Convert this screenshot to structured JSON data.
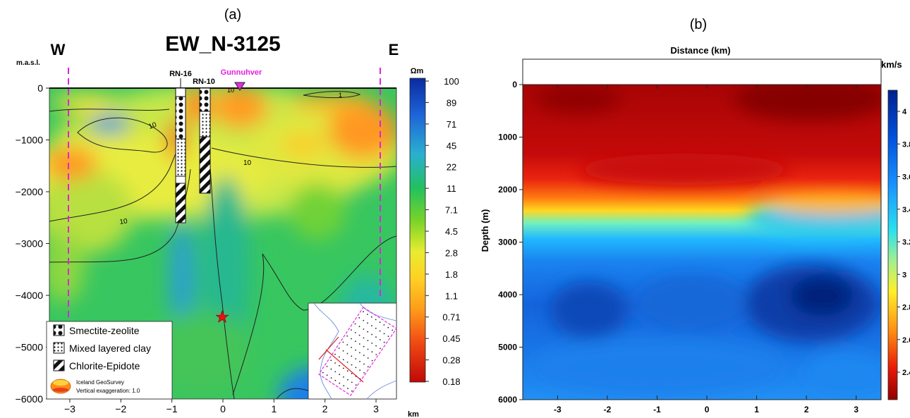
{
  "panel_a": {
    "label": "(a)",
    "title": "EW_N-3125",
    "west_label": "W",
    "east_label": "E",
    "y_unit": "m.a.s.l.",
    "x_unit": "km",
    "colorbar_unit": "Ωm",
    "well_labels": [
      "RN-16",
      "RN-10"
    ],
    "site_label": "Gunnuhver",
    "contour_labels": [
      "10",
      "10",
      "10",
      "10",
      "1"
    ],
    "legend": [
      {
        "name": "smectite",
        "label": "Smectite-zeolite"
      },
      {
        "name": "mixed",
        "label": "Mixed layered clay"
      },
      {
        "name": "chlorite",
        "label": "Chlorite-Epidote"
      }
    ],
    "logo_line1": "Iceland GeoSurvey",
    "logo_line2": "Vertical exaggeration: 1.0",
    "colors": {
      "orange": "#ff8c1a",
      "red": "#d81010",
      "magenta": "#e020e0"
    }
  },
  "panel_b": {
    "label": "(b)",
    "top_label": "Distance (km)",
    "colorbar_unit": "km/s",
    "ylabel": "Depth (m)"
  },
  "chart_data": [
    {
      "type": "heatmap",
      "title": "EW_N-3125",
      "xlabel": "km",
      "ylabel": "m.a.s.l.",
      "xlim": [
        -3.4,
        3.4
      ],
      "ylim": [
        -6000,
        0
      ],
      "x_ticks": [
        "-3",
        "-2",
        "-1",
        "0",
        "1",
        "2",
        "3"
      ],
      "y_ticks": [
        "0",
        "-1000",
        "-2000",
        "-3000",
        "-4000",
        "-5000",
        "-6000"
      ],
      "colorbar": {
        "unit": "Ωm",
        "ticks": [
          "100",
          "89",
          "71",
          "45",
          "22",
          "11",
          "7.1",
          "4.5",
          "2.8",
          "1.8",
          "1.1",
          "0.71",
          "0.45",
          "0.28",
          "0.18"
        ]
      },
      "profile_lines_x": [
        -3,
        3
      ],
      "wells": [
        {
          "name": "RN-16",
          "x": -0.85,
          "bottom": -2600
        },
        {
          "name": "RN-10",
          "x": -0.4,
          "bottom": -2050
        }
      ],
      "marker": {
        "name": "Gunnuhver",
        "x": 0.3,
        "y": 0
      },
      "star": {
        "x": -0.05,
        "y": -4420
      }
    },
    {
      "type": "heatmap",
      "title": "",
      "xlabel": "Distance (km)",
      "ylabel": "Depth (m)",
      "xlim": [
        -3.7,
        3.5
      ],
      "ylim": [
        6000,
        0
      ],
      "x_ticks": [
        "-3",
        "-2",
        "-1",
        "0",
        "1",
        "2",
        "3"
      ],
      "y_ticks": [
        "0",
        "1000",
        "2000",
        "3000",
        "4000",
        "5000",
        "6000"
      ],
      "colorbar": {
        "unit": "km/s",
        "ticks": [
          "4",
          "3.8",
          "3.6",
          "3.4",
          "3.2",
          "3",
          "2.8",
          "2.6",
          "2.4"
        ]
      }
    }
  ]
}
